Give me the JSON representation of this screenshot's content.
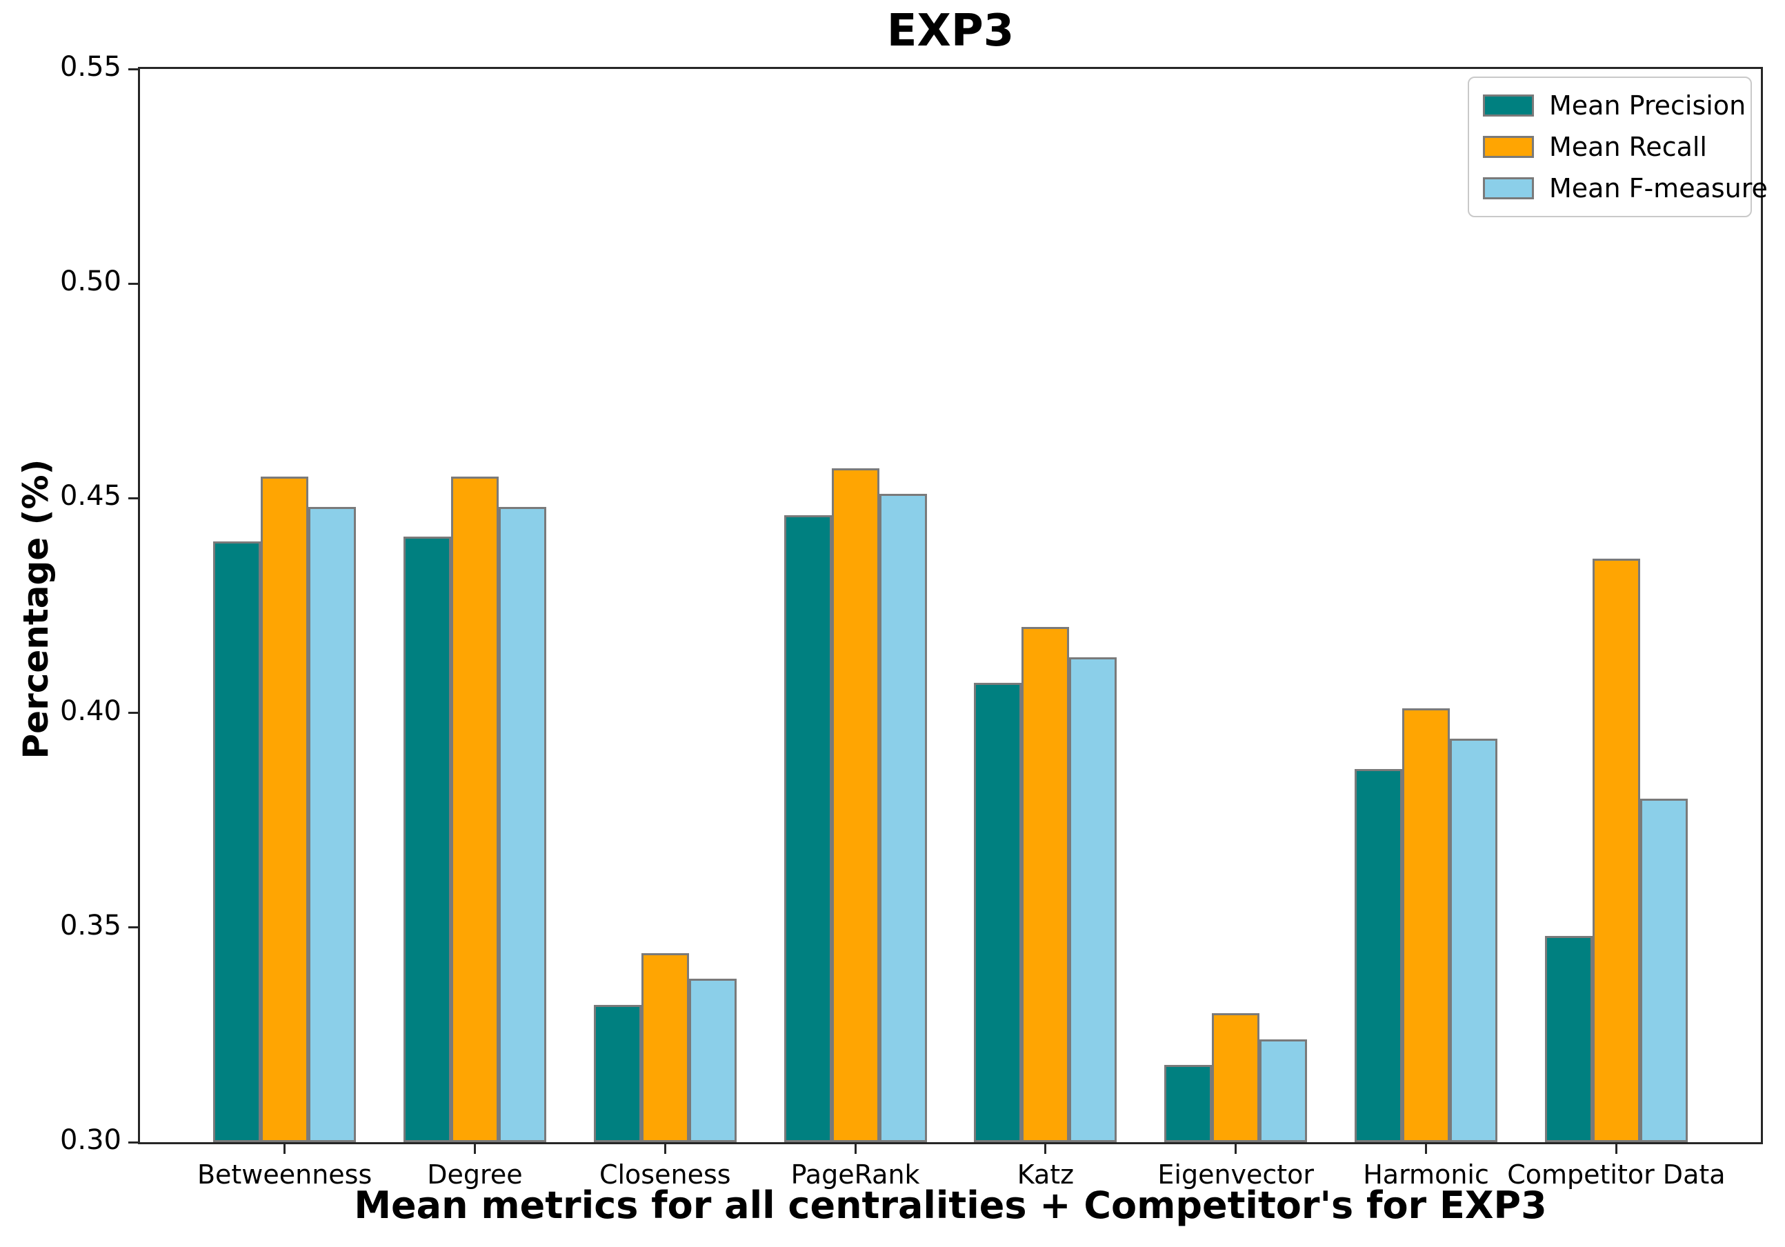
{
  "chart_data": {
    "type": "bar",
    "title": "EXP3",
    "xlabel": "Mean metrics for all centralities + Competitor's for EXP3",
    "ylabel": "Percentage (%)",
    "categories": [
      "Betweenness",
      "Degree",
      "Closeness",
      "PageRank",
      "Katz",
      "Eigenvector",
      "Harmonic",
      "Competitor Data"
    ],
    "series": [
      {
        "name": "Mean Precision",
        "color": "#008080",
        "values": [
          0.44,
          0.441,
          0.332,
          0.446,
          0.407,
          0.318,
          0.387,
          0.348
        ]
      },
      {
        "name": "Mean Recall",
        "color": "#FFA502",
        "values": [
          0.455,
          0.455,
          0.344,
          0.457,
          0.42,
          0.33,
          0.401,
          0.436
        ]
      },
      {
        "name": "Mean F-measure",
        "color": "#8BCFE9",
        "values": [
          0.448,
          0.448,
          0.338,
          0.451,
          0.413,
          0.324,
          0.394,
          0.38
        ]
      }
    ],
    "ylim": [
      0.3,
      0.55
    ],
    "yticks": [
      "0.30",
      "0.35",
      "0.40",
      "0.45",
      "0.50",
      "0.55"
    ],
    "grid": false,
    "legend_position": "upper right",
    "bar_edge_color": "#7a7a7a",
    "bar_group_width": 0.75
  }
}
